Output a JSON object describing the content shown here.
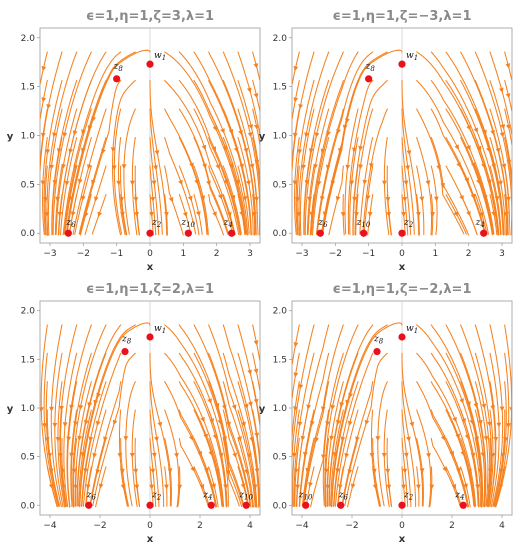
{
  "colors": {
    "stream": "#f58220",
    "point": "#e8121c",
    "title": "#8a8a8a"
  },
  "chart_data": [
    {
      "type": "streamplot",
      "title": "ϵ=1,η=1,ζ=3,λ=1",
      "xlabel": "x",
      "ylabel": "y",
      "xlim": [
        -3.3,
        3.3
      ],
      "ylim": [
        -0.1,
        2.1
      ],
      "xticks": [
        -3,
        -2,
        -1,
        0,
        1,
        2,
        3
      ],
      "yticks": [
        0.0,
        0.5,
        1.0,
        1.5,
        2.0
      ],
      "points": [
        {
          "label": "w1",
          "x": 0.0,
          "y": 1.73
        },
        {
          "label": "z8",
          "x": -1.0,
          "y": 1.58
        },
        {
          "label": "z6",
          "x": -2.45,
          "y": 0.0
        },
        {
          "label": "z2",
          "x": 0.0,
          "y": 0.0
        },
        {
          "label": "z10",
          "x": 1.15,
          "y": 0.0
        },
        {
          "label": "z4",
          "x": 2.45,
          "y": 0.0
        }
      ]
    },
    {
      "type": "streamplot",
      "title": "ϵ=1,η=1,ζ=−3,λ=1",
      "xlabel": "x",
      "ylabel": "y",
      "xlim": [
        -3.3,
        3.3
      ],
      "ylim": [
        -0.1,
        2.1
      ],
      "xticks": [
        -3,
        -2,
        -1,
        0,
        1,
        2,
        3
      ],
      "yticks": [
        0.0,
        0.5,
        1.0,
        1.5,
        2.0
      ],
      "points": [
        {
          "label": "w1",
          "x": 0.0,
          "y": 1.73
        },
        {
          "label": "z8",
          "x": -1.0,
          "y": 1.58
        },
        {
          "label": "z6",
          "x": -2.45,
          "y": 0.0
        },
        {
          "label": "z10",
          "x": -1.15,
          "y": 0.0
        },
        {
          "label": "z2",
          "x": 0.0,
          "y": 0.0
        },
        {
          "label": "z4",
          "x": 2.45,
          "y": 0.0
        }
      ]
    },
    {
      "type": "streamplot",
      "title": "ϵ=1,η=1,ζ=2,λ=1",
      "xlabel": "x",
      "ylabel": "y",
      "xlim": [
        -4.4,
        4.4
      ],
      "ylim": [
        -0.1,
        2.1
      ],
      "xticks": [
        -4,
        -2,
        0,
        2,
        4
      ],
      "yticks": [
        0.0,
        0.5,
        1.0,
        1.5,
        2.0
      ],
      "points": [
        {
          "label": "w1",
          "x": 0.0,
          "y": 1.73
        },
        {
          "label": "z8",
          "x": -1.0,
          "y": 1.58
        },
        {
          "label": "z6",
          "x": -2.45,
          "y": 0.0
        },
        {
          "label": "z2",
          "x": 0.0,
          "y": 0.0
        },
        {
          "label": "z4",
          "x": 2.45,
          "y": 0.0
        },
        {
          "label": "z10",
          "x": 3.85,
          "y": 0.0
        }
      ]
    },
    {
      "type": "streamplot",
      "title": "ϵ=1,η=1,ζ=−2,λ=1",
      "xlabel": "x",
      "ylabel": "y",
      "xlim": [
        -4.4,
        4.4
      ],
      "ylim": [
        -0.1,
        2.1
      ],
      "xticks": [
        -4,
        -2,
        0,
        2,
        4
      ],
      "yticks": [
        0.0,
        0.5,
        1.0,
        1.5,
        2.0
      ],
      "points": [
        {
          "label": "w1",
          "x": 0.0,
          "y": 1.73
        },
        {
          "label": "z8",
          "x": -1.0,
          "y": 1.58
        },
        {
          "label": "z10",
          "x": -3.85,
          "y": 0.0
        },
        {
          "label": "z6",
          "x": -2.45,
          "y": 0.0
        },
        {
          "label": "z2",
          "x": 0.0,
          "y": 0.0
        },
        {
          "label": "z4",
          "x": 2.45,
          "y": 0.0
        }
      ]
    }
  ]
}
